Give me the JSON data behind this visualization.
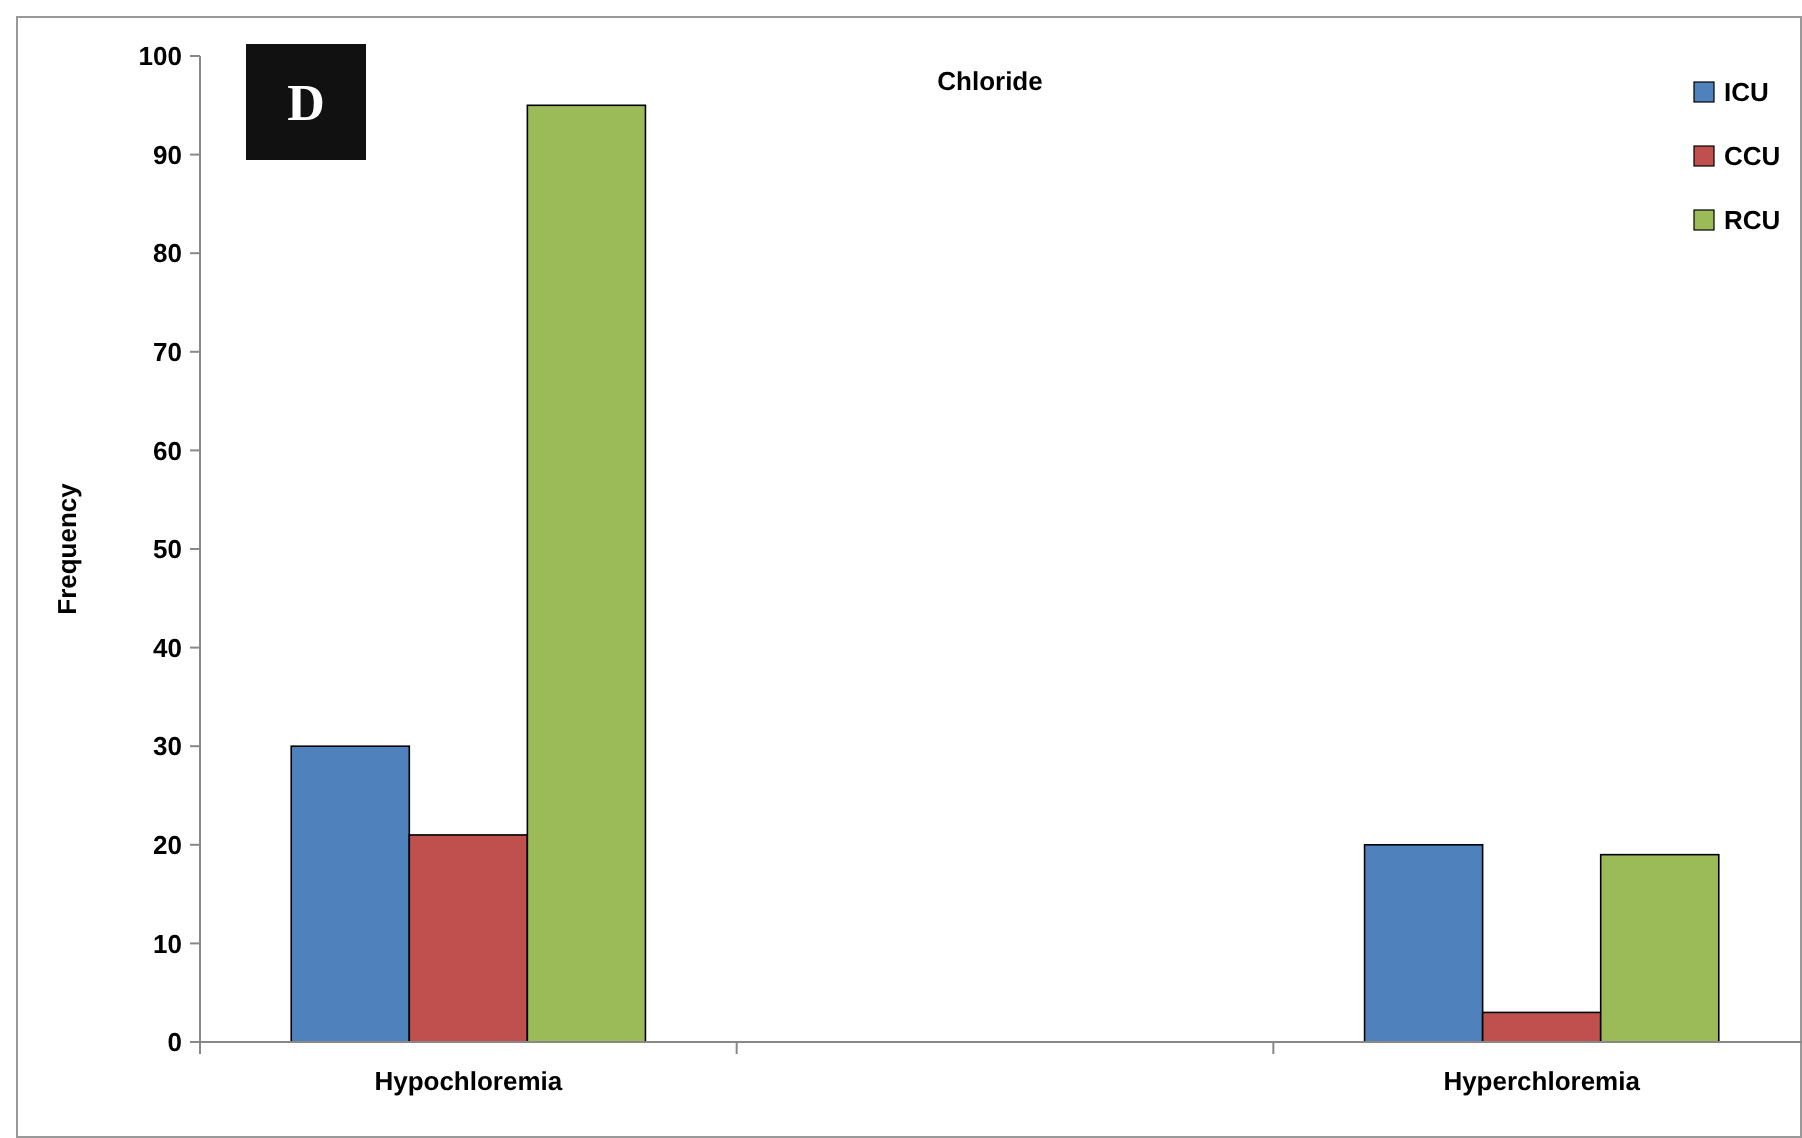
{
  "chart_data": {
    "type": "bar",
    "title": "Chloride",
    "ylabel": "Frequency",
    "categories": [
      "Hypochloremia",
      null,
      "Hyperchloremia"
    ],
    "series": [
      {
        "name": "ICU",
        "color": "#4f81bd",
        "values": [
          30,
          null,
          20
        ]
      },
      {
        "name": "CCU",
        "color": "#c0504d",
        "values": [
          21,
          null,
          3
        ]
      },
      {
        "name": "RCU",
        "color": "#9bbb59",
        "values": [
          95,
          null,
          19
        ]
      }
    ],
    "ylim": [
      0,
      100
    ],
    "yticks": [
      0,
      10,
      20,
      30,
      40,
      50,
      60,
      70,
      80,
      90,
      100
    ],
    "grid": false,
    "legend": "top right",
    "annotations": [
      "D"
    ]
  }
}
